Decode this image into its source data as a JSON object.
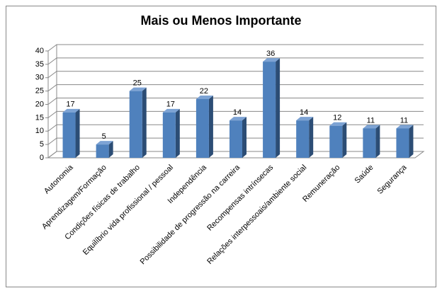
{
  "chart_data": {
    "type": "bar",
    "title": "Mais ou Menos Importante",
    "categories": [
      "Autonomia",
      "Aprendizagem/Formação",
      "Condições físicas de trabalho",
      "Equilíbrio vida profissional  / pessoal",
      "Independência",
      "Possibilidade de progressão na carreira",
      "Recompensas intrínsecas",
      "Relações interpessoais/ambiente social",
      "Remuneração",
      "Saúde",
      "Segurança"
    ],
    "values": [
      17,
      5,
      25,
      17,
      22,
      14,
      36,
      14,
      12,
      11,
      11
    ],
    "color": "#4f81bd",
    "ylim": [
      0,
      40
    ],
    "yticks": [
      0,
      5,
      10,
      15,
      20,
      25,
      30,
      35,
      40
    ],
    "grid": true
  }
}
